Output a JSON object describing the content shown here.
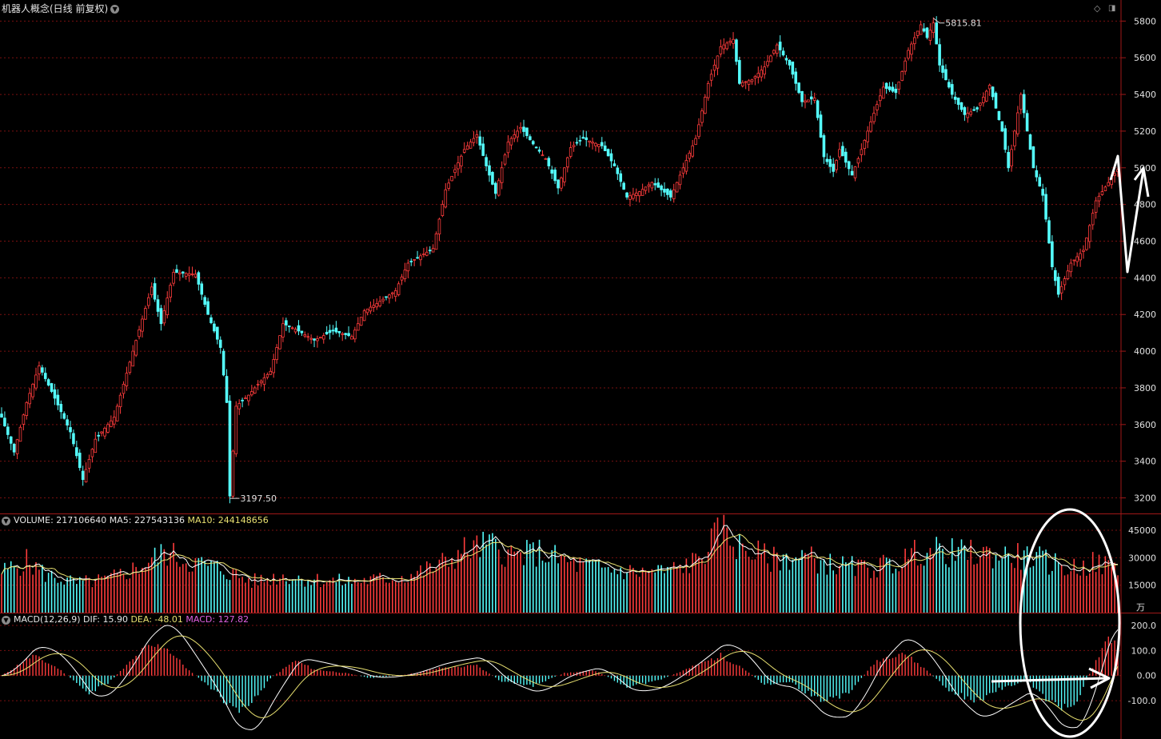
{
  "header": {
    "title": "机器人概念(日线 前复权)",
    "icon_dropdown": "chevron-down-icon",
    "icon_diamond": "diamond-icon",
    "icon_panel": "panel-icon"
  },
  "price_axis": {
    "labels": [
      "5800",
      "5600",
      "5400",
      "5200",
      "5000",
      "4800",
      "4600",
      "4400",
      "4200",
      "4000",
      "3800",
      "3600",
      "3400",
      "3200"
    ]
  },
  "annotations": {
    "high": "5815.81",
    "low": "3197.50"
  },
  "volume_legend": {
    "label": "VOLUME:",
    "value": "217106640",
    "ma5_label": "MA5:",
    "ma5_value": "227543136",
    "ma10_label": "MA10:",
    "ma10_value": "244148656"
  },
  "volume_axis": {
    "labels": [
      "45000",
      "30000",
      "15000"
    ],
    "unit": "万"
  },
  "macd_legend": {
    "label": "MACD(12,26,9)",
    "dif_label": "DIF:",
    "dif_value": "15.90",
    "dea_label": "DEA:",
    "dea_value": "-48.01",
    "macd_label": "MACD:",
    "macd_value": "127.82"
  },
  "macd_axis": {
    "labels": [
      "200.0",
      "100.0",
      "0.00",
      "-100.0"
    ]
  },
  "colors": {
    "up": "#ff3c3c",
    "down": "#54fcfc",
    "grid": "#7a1010",
    "frame": "#a01818",
    "ma5": "#ffffff",
    "ma10": "#e8e070",
    "macd_label": "#e060e0",
    "drawing": "#ffffff"
  },
  "chart_data": [
    {
      "type": "candlestick",
      "title": "机器人概念(日线 前复权)",
      "ylim": [
        3150,
        5880
      ],
      "y_ticks": [
        5800,
        5600,
        5400,
        5200,
        5000,
        4800,
        4600,
        4400,
        4200,
        4000,
        3800,
        3600,
        3400,
        3200
      ],
      "keypoints": [
        {
          "i": 0,
          "v": 3640
        },
        {
          "i": 4,
          "v": 3450
        },
        {
          "i": 8,
          "v": 3720
        },
        {
          "i": 12,
          "v": 3920
        },
        {
          "i": 16,
          "v": 3780
        },
        {
          "i": 22,
          "v": 3560
        },
        {
          "i": 26,
          "v": 3300
        },
        {
          "i": 30,
          "v": 3520
        },
        {
          "i": 36,
          "v": 3640
        },
        {
          "i": 42,
          "v": 4000
        },
        {
          "i": 48,
          "v": 4350
        },
        {
          "i": 51,
          "v": 4150
        },
        {
          "i": 55,
          "v": 4430
        },
        {
          "i": 62,
          "v": 4420
        },
        {
          "i": 66,
          "v": 4200
        },
        {
          "i": 70,
          "v": 4020
        },
        {
          "i": 72,
          "v": 3720
        },
        {
          "i": 73,
          "v": 3210
        },
        {
          "i": 75,
          "v": 3700
        },
        {
          "i": 79,
          "v": 3760
        },
        {
          "i": 82,
          "v": 3820
        },
        {
          "i": 86,
          "v": 3890
        },
        {
          "i": 90,
          "v": 4150
        },
        {
          "i": 94,
          "v": 4120
        },
        {
          "i": 100,
          "v": 4060
        },
        {
          "i": 106,
          "v": 4110
        },
        {
          "i": 112,
          "v": 4080
        },
        {
          "i": 116,
          "v": 4220
        },
        {
          "i": 120,
          "v": 4260
        },
        {
          "i": 126,
          "v": 4330
        },
        {
          "i": 130,
          "v": 4480
        },
        {
          "i": 138,
          "v": 4560
        },
        {
          "i": 142,
          "v": 4880
        },
        {
          "i": 148,
          "v": 5100
        },
        {
          "i": 152,
          "v": 5180
        },
        {
          "i": 155,
          "v": 5010
        },
        {
          "i": 158,
          "v": 4860
        },
        {
          "i": 162,
          "v": 5140
        },
        {
          "i": 166,
          "v": 5220
        },
        {
          "i": 170,
          "v": 5130
        },
        {
          "i": 174,
          "v": 5050
        },
        {
          "i": 178,
          "v": 4890
        },
        {
          "i": 182,
          "v": 5110
        },
        {
          "i": 186,
          "v": 5160
        },
        {
          "i": 192,
          "v": 5120
        },
        {
          "i": 196,
          "v": 5010
        },
        {
          "i": 200,
          "v": 4840
        },
        {
          "i": 204,
          "v": 4870
        },
        {
          "i": 208,
          "v": 4920
        },
        {
          "i": 214,
          "v": 4840
        },
        {
          "i": 218,
          "v": 5000
        },
        {
          "i": 222,
          "v": 5160
        },
        {
          "i": 226,
          "v": 5460
        },
        {
          "i": 230,
          "v": 5660
        },
        {
          "i": 234,
          "v": 5700
        },
        {
          "i": 236,
          "v": 5460
        },
        {
          "i": 240,
          "v": 5480
        },
        {
          "i": 244,
          "v": 5550
        },
        {
          "i": 248,
          "v": 5670
        },
        {
          "i": 252,
          "v": 5560
        },
        {
          "i": 256,
          "v": 5360
        },
        {
          "i": 260,
          "v": 5380
        },
        {
          "i": 263,
          "v": 5060
        },
        {
          "i": 266,
          "v": 4980
        },
        {
          "i": 268,
          "v": 5100
        },
        {
          "i": 272,
          "v": 4960
        },
        {
          "i": 274,
          "v": 5050
        },
        {
          "i": 278,
          "v": 5250
        },
        {
          "i": 282,
          "v": 5440
        },
        {
          "i": 286,
          "v": 5410
        },
        {
          "i": 290,
          "v": 5640
        },
        {
          "i": 294,
          "v": 5780
        },
        {
          "i": 296,
          "v": 5710
        },
        {
          "i": 298,
          "v": 5790
        },
        {
          "i": 300,
          "v": 5560
        },
        {
          "i": 304,
          "v": 5400
        },
        {
          "i": 308,
          "v": 5290
        },
        {
          "i": 312,
          "v": 5320
        },
        {
          "i": 316,
          "v": 5450
        },
        {
          "i": 320,
          "v": 5200
        },
        {
          "i": 322,
          "v": 5000
        },
        {
          "i": 326,
          "v": 5400
        },
        {
          "i": 330,
          "v": 5000
        },
        {
          "i": 333,
          "v": 4850
        },
        {
          "i": 336,
          "v": 4460
        },
        {
          "i": 338,
          "v": 4310
        },
        {
          "i": 342,
          "v": 4480
        },
        {
          "i": 346,
          "v": 4550
        },
        {
          "i": 350,
          "v": 4820
        },
        {
          "i": 354,
          "v": 4920
        },
        {
          "i": 357,
          "v": 4990
        }
      ]
    },
    {
      "type": "bar",
      "title": "VOLUME",
      "ylabel": "万",
      "ylim": [
        0,
        52000
      ],
      "y_ticks": [
        45000,
        30000,
        15000
      ],
      "keypoints": [
        {
          "i": 0,
          "v": 22000
        },
        {
          "i": 8,
          "v": 28000
        },
        {
          "i": 14,
          "v": 21000
        },
        {
          "i": 24,
          "v": 16000
        },
        {
          "i": 34,
          "v": 18000
        },
        {
          "i": 44,
          "v": 25000
        },
        {
          "i": 52,
          "v": 33000
        },
        {
          "i": 60,
          "v": 28000
        },
        {
          "i": 70,
          "v": 24000
        },
        {
          "i": 80,
          "v": 17000
        },
        {
          "i": 90,
          "v": 20000
        },
        {
          "i": 100,
          "v": 18000
        },
        {
          "i": 110,
          "v": 17000
        },
        {
          "i": 120,
          "v": 18000
        },
        {
          "i": 130,
          "v": 20000
        },
        {
          "i": 140,
          "v": 26000
        },
        {
          "i": 148,
          "v": 34000
        },
        {
          "i": 156,
          "v": 37000
        },
        {
          "i": 164,
          "v": 31000
        },
        {
          "i": 172,
          "v": 33000
        },
        {
          "i": 182,
          "v": 27000
        },
        {
          "i": 192,
          "v": 24000
        },
        {
          "i": 204,
          "v": 22000
        },
        {
          "i": 214,
          "v": 23000
        },
        {
          "i": 222,
          "v": 28000
        },
        {
          "i": 228,
          "v": 40000
        },
        {
          "i": 230,
          "v": 46000
        },
        {
          "i": 236,
          "v": 36000
        },
        {
          "i": 246,
          "v": 29000
        },
        {
          "i": 256,
          "v": 31000
        },
        {
          "i": 266,
          "v": 26000
        },
        {
          "i": 276,
          "v": 24000
        },
        {
          "i": 286,
          "v": 27000
        },
        {
          "i": 294,
          "v": 34000
        },
        {
          "i": 302,
          "v": 33000
        },
        {
          "i": 312,
          "v": 32000
        },
        {
          "i": 322,
          "v": 31000
        },
        {
          "i": 330,
          "v": 30000
        },
        {
          "i": 336,
          "v": 27000
        },
        {
          "i": 342,
          "v": 24000
        },
        {
          "i": 350,
          "v": 27000
        },
        {
          "i": 357,
          "v": 24000
        }
      ]
    },
    {
      "type": "bar",
      "title": "MACD(12,26,9)",
      "ylim": [
        -240,
        235
      ],
      "y_ticks": [
        200.0,
        100.0,
        0.0,
        -100.0
      ],
      "keypoints": [
        {
          "i": 0,
          "v": 0
        },
        {
          "i": 10,
          "v": 80
        },
        {
          "i": 18,
          "v": 30
        },
        {
          "i": 28,
          "v": -70
        },
        {
          "i": 34,
          "v": -30
        },
        {
          "i": 40,
          "v": 40
        },
        {
          "i": 46,
          "v": 110
        },
        {
          "i": 52,
          "v": 120
        },
        {
          "i": 60,
          "v": 20
        },
        {
          "i": 68,
          "v": -60
        },
        {
          "i": 74,
          "v": -140
        },
        {
          "i": 80,
          "v": -110
        },
        {
          "i": 86,
          "v": -10
        },
        {
          "i": 94,
          "v": 60
        },
        {
          "i": 100,
          "v": 25
        },
        {
          "i": 110,
          "v": 10
        },
        {
          "i": 118,
          "v": -10
        },
        {
          "i": 130,
          "v": 5
        },
        {
          "i": 140,
          "v": 30
        },
        {
          "i": 152,
          "v": 40
        },
        {
          "i": 160,
          "v": -25
        },
        {
          "i": 170,
          "v": -40
        },
        {
          "i": 180,
          "v": 10
        },
        {
          "i": 190,
          "v": 20
        },
        {
          "i": 200,
          "v": -45
        },
        {
          "i": 210,
          "v": -20
        },
        {
          "i": 220,
          "v": 30
        },
        {
          "i": 230,
          "v": 80
        },
        {
          "i": 236,
          "v": 40
        },
        {
          "i": 244,
          "v": -35
        },
        {
          "i": 252,
          "v": -25
        },
        {
          "i": 262,
          "v": -100
        },
        {
          "i": 270,
          "v": -80
        },
        {
          "i": 280,
          "v": 60
        },
        {
          "i": 288,
          "v": 95
        },
        {
          "i": 296,
          "v": 20
        },
        {
          "i": 304,
          "v": -70
        },
        {
          "i": 312,
          "v": -100
        },
        {
          "i": 320,
          "v": -50
        },
        {
          "i": 328,
          "v": -20
        },
        {
          "i": 334,
          "v": -90
        },
        {
          "i": 338,
          "v": -130
        },
        {
          "i": 344,
          "v": -100
        },
        {
          "i": 350,
          "v": 60
        },
        {
          "i": 354,
          "v": 155
        },
        {
          "i": 357,
          "v": 128
        }
      ]
    }
  ]
}
